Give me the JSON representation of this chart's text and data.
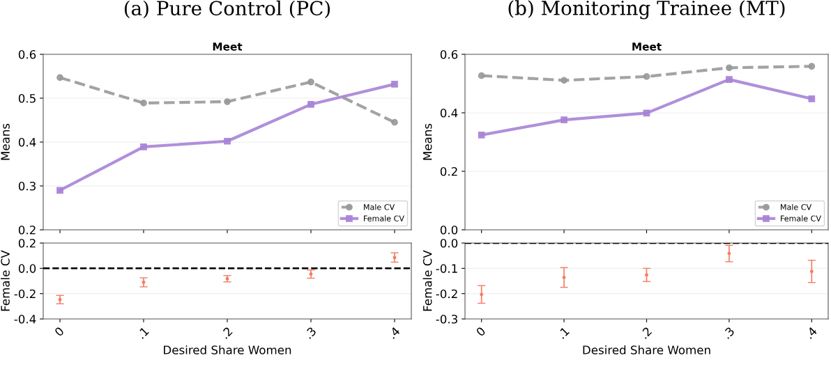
{
  "chart_data": [
    {
      "type": "line",
      "title": "(a) Pure Control (PC)",
      "subtitle": "Meet",
      "ylabel": "Means",
      "categories": [
        "0",
        ".1",
        ".2",
        ".3",
        ".4"
      ],
      "series": [
        {
          "name": "Male CV",
          "color": "#999999",
          "values": [
            0.547,
            0.489,
            0.492,
            0.537,
            0.445
          ],
          "marker": "circle",
          "line_style": "dashed"
        },
        {
          "name": "Female CV",
          "color": "#a783d6",
          "values": [
            0.29,
            0.389,
            0.402,
            0.486,
            0.532
          ],
          "marker": "square",
          "line_style": "solid"
        }
      ],
      "ylim": [
        0.2,
        0.6
      ],
      "yticks": [
        0.2,
        0.3,
        0.4,
        0.5,
        0.6
      ],
      "grid": "y",
      "legend": "bottom right",
      "tick_labels": "y"
    },
    {
      "type": "scatter",
      "xlabel": "Desired Share Women",
      "ylabel": "Female CV",
      "categories": [
        "0",
        ".1",
        ".2",
        ".3",
        ".4"
      ],
      "series": [
        {
          "color": "#f47c62",
          "values": [
            -0.247,
            -0.11,
            -0.082,
            -0.045,
            0.086
          ],
          "errors": [
            [
              -0.28,
              -0.214
            ],
            [
              -0.146,
              -0.075
            ],
            [
              -0.107,
              -0.057
            ],
            [
              -0.078,
              -0.013
            ],
            [
              0.049,
              0.123
            ]
          ]
        }
      ],
      "ylim": [
        -0.4,
        0.2
      ],
      "yticks": [
        {
          "value": -0.4,
          "label": "-0.4"
        },
        {
          "value": -0.2,
          "label": "-0.2"
        },
        {
          "value": 0.0,
          "label": "0.0"
        },
        {
          "value": 0.2,
          "label": "0.2"
        }
      ],
      "grid": "y",
      "marker": "circle",
      "ref_lines": [
        {
          "axis": "y",
          "value": 0.0,
          "color": "#000000",
          "line_style": "dashed"
        }
      ]
    },
    {
      "type": "line",
      "title": "(b) Monitoring Trainee (MT)",
      "subtitle": "Meet",
      "ylabel": "Means",
      "categories": [
        "0",
        ".1",
        ".2",
        ".3",
        ".4"
      ],
      "series": [
        {
          "name": "Male CV",
          "color": "#999999",
          "values": [
            0.527,
            0.511,
            0.524,
            0.554,
            0.559
          ],
          "marker": "circle",
          "line_style": "dashed"
        },
        {
          "name": "Female CV",
          "color": "#a783d6",
          "values": [
            0.324,
            0.376,
            0.399,
            0.514,
            0.448
          ],
          "marker": "square",
          "line_style": "solid"
        }
      ],
      "ylim": [
        0.0,
        0.6
      ],
      "yticks": [
        {
          "value": 0.0,
          "label": "0.0"
        },
        {
          "value": 0.2,
          "label": "0.2"
        },
        {
          "value": 0.4,
          "label": "0.4"
        },
        {
          "value": 0.6,
          "label": "0.6"
        }
      ],
      "grid": "y",
      "legend": "bottom right",
      "tick_labels": "y"
    },
    {
      "type": "scatter",
      "xlabel": "Desired Share Women",
      "ylabel": "Female CV",
      "categories": [
        "0",
        ".1",
        ".2",
        ".3",
        ".4"
      ],
      "series": [
        {
          "color": "#f47c62",
          "values": [
            -0.203,
            -0.136,
            -0.126,
            -0.041,
            -0.112
          ],
          "errors": [
            [
              -0.238,
              -0.168
            ],
            [
              -0.175,
              -0.097
            ],
            [
              -0.152,
              -0.1
            ],
            [
              -0.074,
              -0.009
            ],
            [
              -0.156,
              -0.068
            ]
          ]
        }
      ],
      "ylim": [
        -0.3,
        0.0
      ],
      "yticks": [
        {
          "value": -0.3,
          "label": "-0.3"
        },
        {
          "value": -0.2,
          "label": "-0.2"
        },
        {
          "value": -0.1,
          "label": "-0.1"
        },
        {
          "value": 0.0,
          "label": "0.0"
        }
      ],
      "grid": "y",
      "marker": "circle",
      "ref_lines": [
        {
          "axis": "y",
          "value": 0.0,
          "color": "#000000",
          "line_style": "dashed"
        }
      ]
    }
  ]
}
